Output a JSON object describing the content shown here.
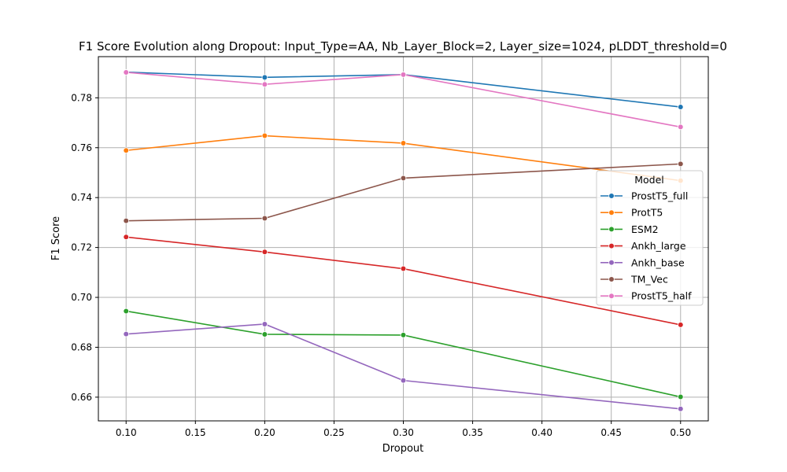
{
  "chart_data": {
    "type": "line",
    "title": "F1 Score Evolution along Dropout: Input_Type=AA, Nb_Layer_Block=2, Layer_size=1024, pLDDT_threshold=0",
    "xlabel": "Dropout",
    "ylabel": "F1 Score",
    "xlim": [
      0.08,
      0.52
    ],
    "ylim": [
      0.6505,
      0.7965
    ],
    "xticks": [
      0.1,
      0.15,
      0.2,
      0.25,
      0.3,
      0.35,
      0.4,
      0.45,
      0.5
    ],
    "xtick_labels": [
      "0.10",
      "0.15",
      "0.20",
      "0.25",
      "0.30",
      "0.35",
      "0.40",
      "0.45",
      "0.50"
    ],
    "yticks": [
      0.66,
      0.68,
      0.7,
      0.72,
      0.74,
      0.76,
      0.78
    ],
    "ytick_labels": [
      "0.66",
      "0.68",
      "0.70",
      "0.72",
      "0.74",
      "0.76",
      "0.78"
    ],
    "grid": true,
    "legend_title": "Model",
    "legend_position": "right",
    "x": [
      0.1,
      0.2,
      0.3,
      0.5
    ],
    "series": [
      {
        "name": "ProstT5_full",
        "color": "#1f77b4",
        "values": [
          0.7903,
          0.7882,
          0.7893,
          0.7763
        ]
      },
      {
        "name": "ProtT5",
        "color": "#ff7f0e",
        "values": [
          0.7589,
          0.7648,
          0.7618,
          0.7468
        ]
      },
      {
        "name": "ESM2",
        "color": "#2ca02c",
        "values": [
          0.6945,
          0.6852,
          0.6849,
          0.6601
        ]
      },
      {
        "name": "Ankh_large",
        "color": "#d62728",
        "values": [
          0.7242,
          0.7182,
          0.7115,
          0.689
        ]
      },
      {
        "name": "Ankh_base",
        "color": "#9467bd",
        "values": [
          0.6853,
          0.6893,
          0.6667,
          0.6553
        ]
      },
      {
        "name": "TM_Vec",
        "color": "#8c564b",
        "values": [
          0.7307,
          0.7317,
          0.7478,
          0.7535
        ]
      },
      {
        "name": "ProstT5_half",
        "color": "#e377c2",
        "values": [
          0.7902,
          0.7854,
          0.7893,
          0.7683
        ]
      }
    ]
  }
}
